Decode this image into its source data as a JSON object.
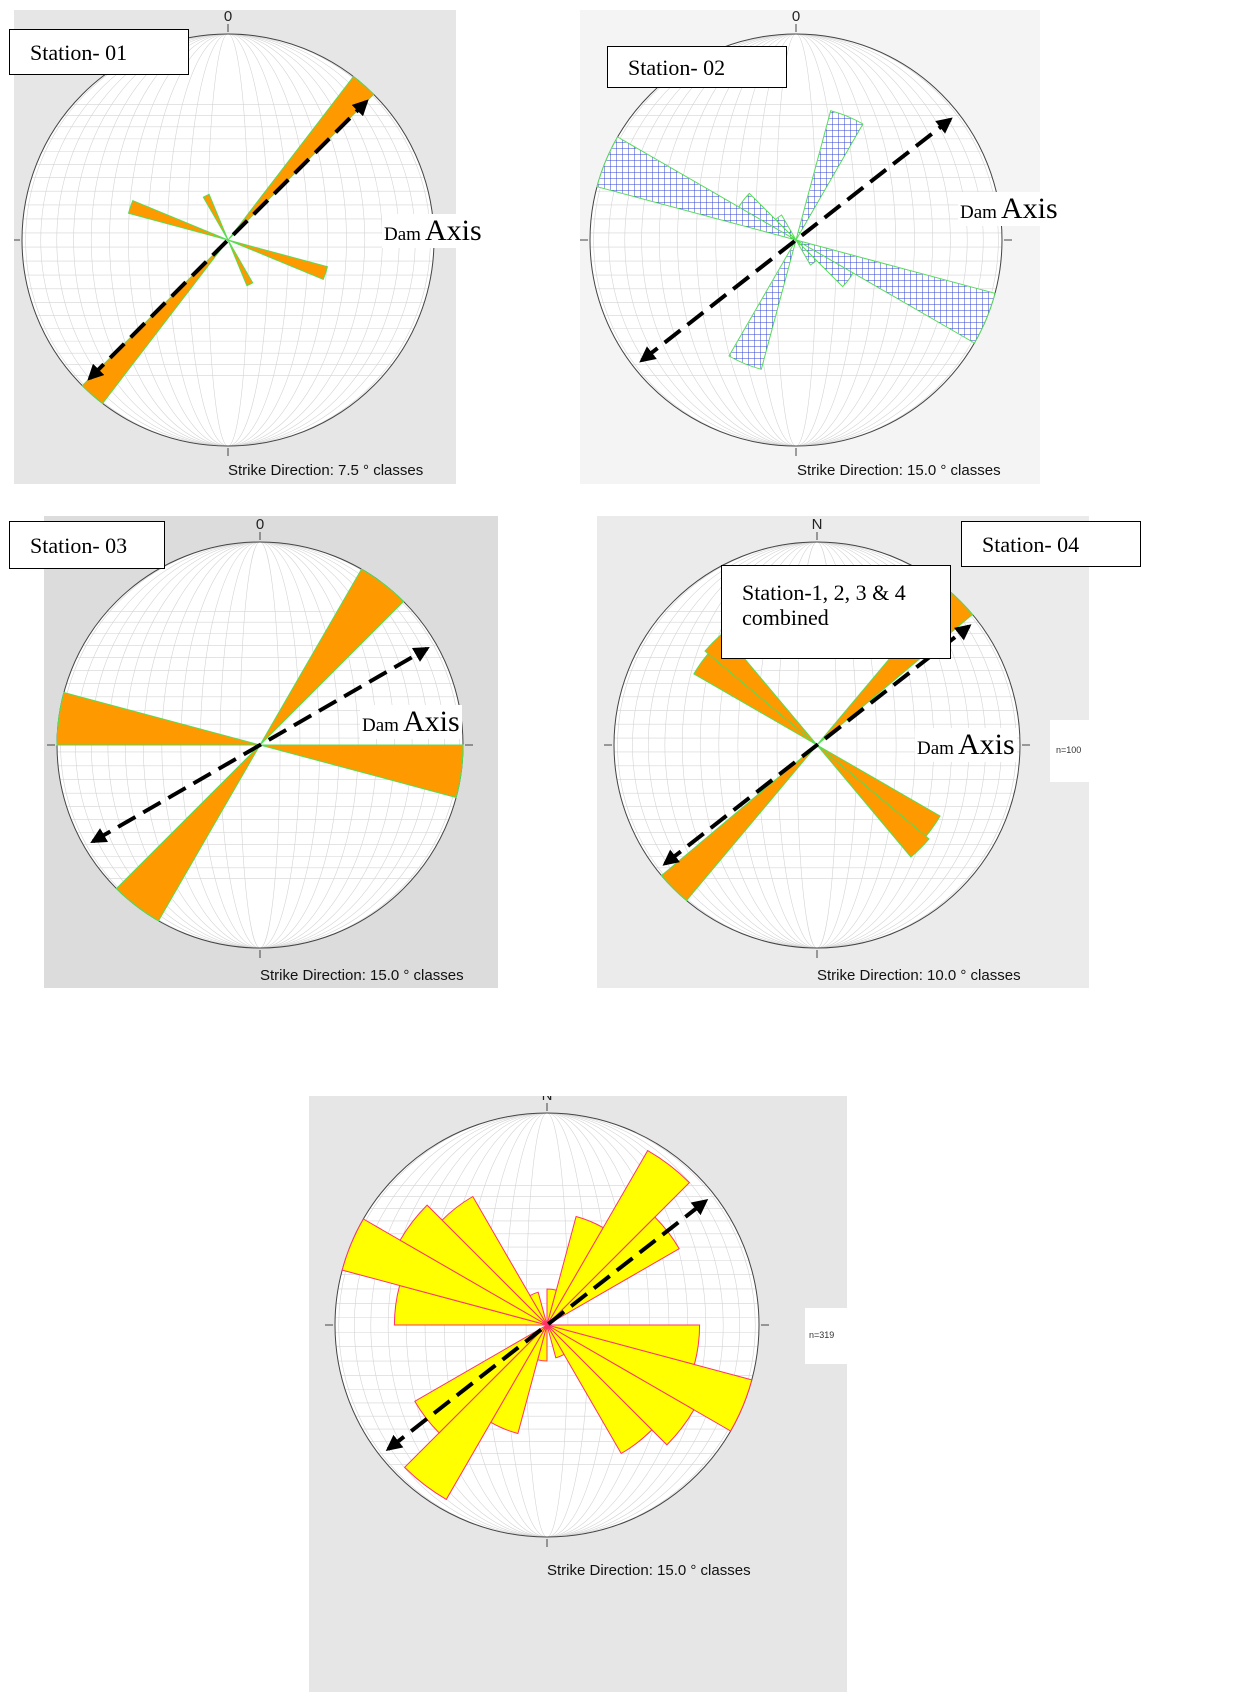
{
  "chart_data": [
    {
      "type": "rose",
      "station_label": "Station- 01",
      "north_label": "0",
      "caption": "Strike Direction: 7.5 ° classes",
      "class_width_deg": 7.5,
      "scale_max": 100,
      "axis_label": {
        "prefix": "Dam",
        "main": "Axis"
      },
      "dam_axis_bearing_deg": 45,
      "fill_color": "#ff9900",
      "edge_color": "#55dd55",
      "petals": [
        {
          "strike_deg": 41.25,
          "value": 100
        },
        {
          "strike_deg": 108.75,
          "value": 50
        },
        {
          "strike_deg": 153.75,
          "value": 24
        }
      ]
    },
    {
      "type": "rose",
      "station_label": "Station- 02",
      "north_label": "0",
      "caption": "Strike Direction: 15.0 ° classes",
      "class_width_deg": 15.0,
      "scale_max": 100,
      "axis_label": {
        "prefix": "Dam",
        "main": "Axis"
      },
      "dam_axis_bearing_deg": 52,
      "fill_color": "#b4b4ff",
      "hatch_color": "#3344cc",
      "edge_color": "#55dd55",
      "petals": [
        {
          "strike_deg": 22.5,
          "value": 65
        },
        {
          "strike_deg": 112.5,
          "value": 100
        },
        {
          "strike_deg": 127.5,
          "value": 32
        },
        {
          "strike_deg": 142.5,
          "value": 14
        }
      ]
    },
    {
      "type": "rose",
      "station_label": "Station- 03",
      "north_label": "0",
      "caption": "Strike Direction: 15.0 ° classes",
      "class_width_deg": 15.0,
      "scale_max": 100,
      "axis_label": {
        "prefix": "Dam",
        "main": "Axis"
      },
      "dam_axis_bearing_deg": 60,
      "fill_color": "#ff9900",
      "edge_color": "#55dd55",
      "petals": [
        {
          "strike_deg": 37.5,
          "value": 100
        },
        {
          "strike_deg": 97.5,
          "value": 100
        }
      ]
    },
    {
      "type": "rose",
      "station_label": "Station- 04",
      "north_label": "N",
      "caption": "Strike Direction: 10.0 ° classes",
      "class_width_deg": 10.0,
      "scale_max": 100,
      "n_label": "n=100",
      "axis_label": {
        "prefix": "Dam",
        "main": "Axis"
      },
      "dam_axis_bearing_deg": 52,
      "fill_color": "#ff9900",
      "edge_color": "#55dd55",
      "petals": [
        {
          "strike_deg": 45,
          "value": 100
        },
        {
          "strike_deg": 125,
          "value": 70
        },
        {
          "strike_deg": 135,
          "value": 72
        }
      ]
    },
    {
      "type": "rose",
      "station_label": "Station-1, 2, 3 & 4 combined",
      "north_label": "N",
      "caption": "Strike Direction: 15.0 ° classes",
      "class_width_deg": 15.0,
      "scale_max": 100,
      "n_label": "n=319",
      "dam_axis_bearing_deg": 52,
      "fill_color": "#ffff00",
      "edge_color": "#ff3366",
      "petals": [
        {
          "strike_deg": 7.5,
          "value": 17
        },
        {
          "strike_deg": 22.5,
          "value": 53
        },
        {
          "strike_deg": 37.5,
          "value": 95
        },
        {
          "strike_deg": 52.5,
          "value": 72
        },
        {
          "strike_deg": 97.5,
          "value": 72
        },
        {
          "strike_deg": 112.5,
          "value": 100
        },
        {
          "strike_deg": 127.5,
          "value": 80
        },
        {
          "strike_deg": 142.5,
          "value": 70
        },
        {
          "strike_deg": 157.5,
          "value": 16
        }
      ]
    }
  ]
}
